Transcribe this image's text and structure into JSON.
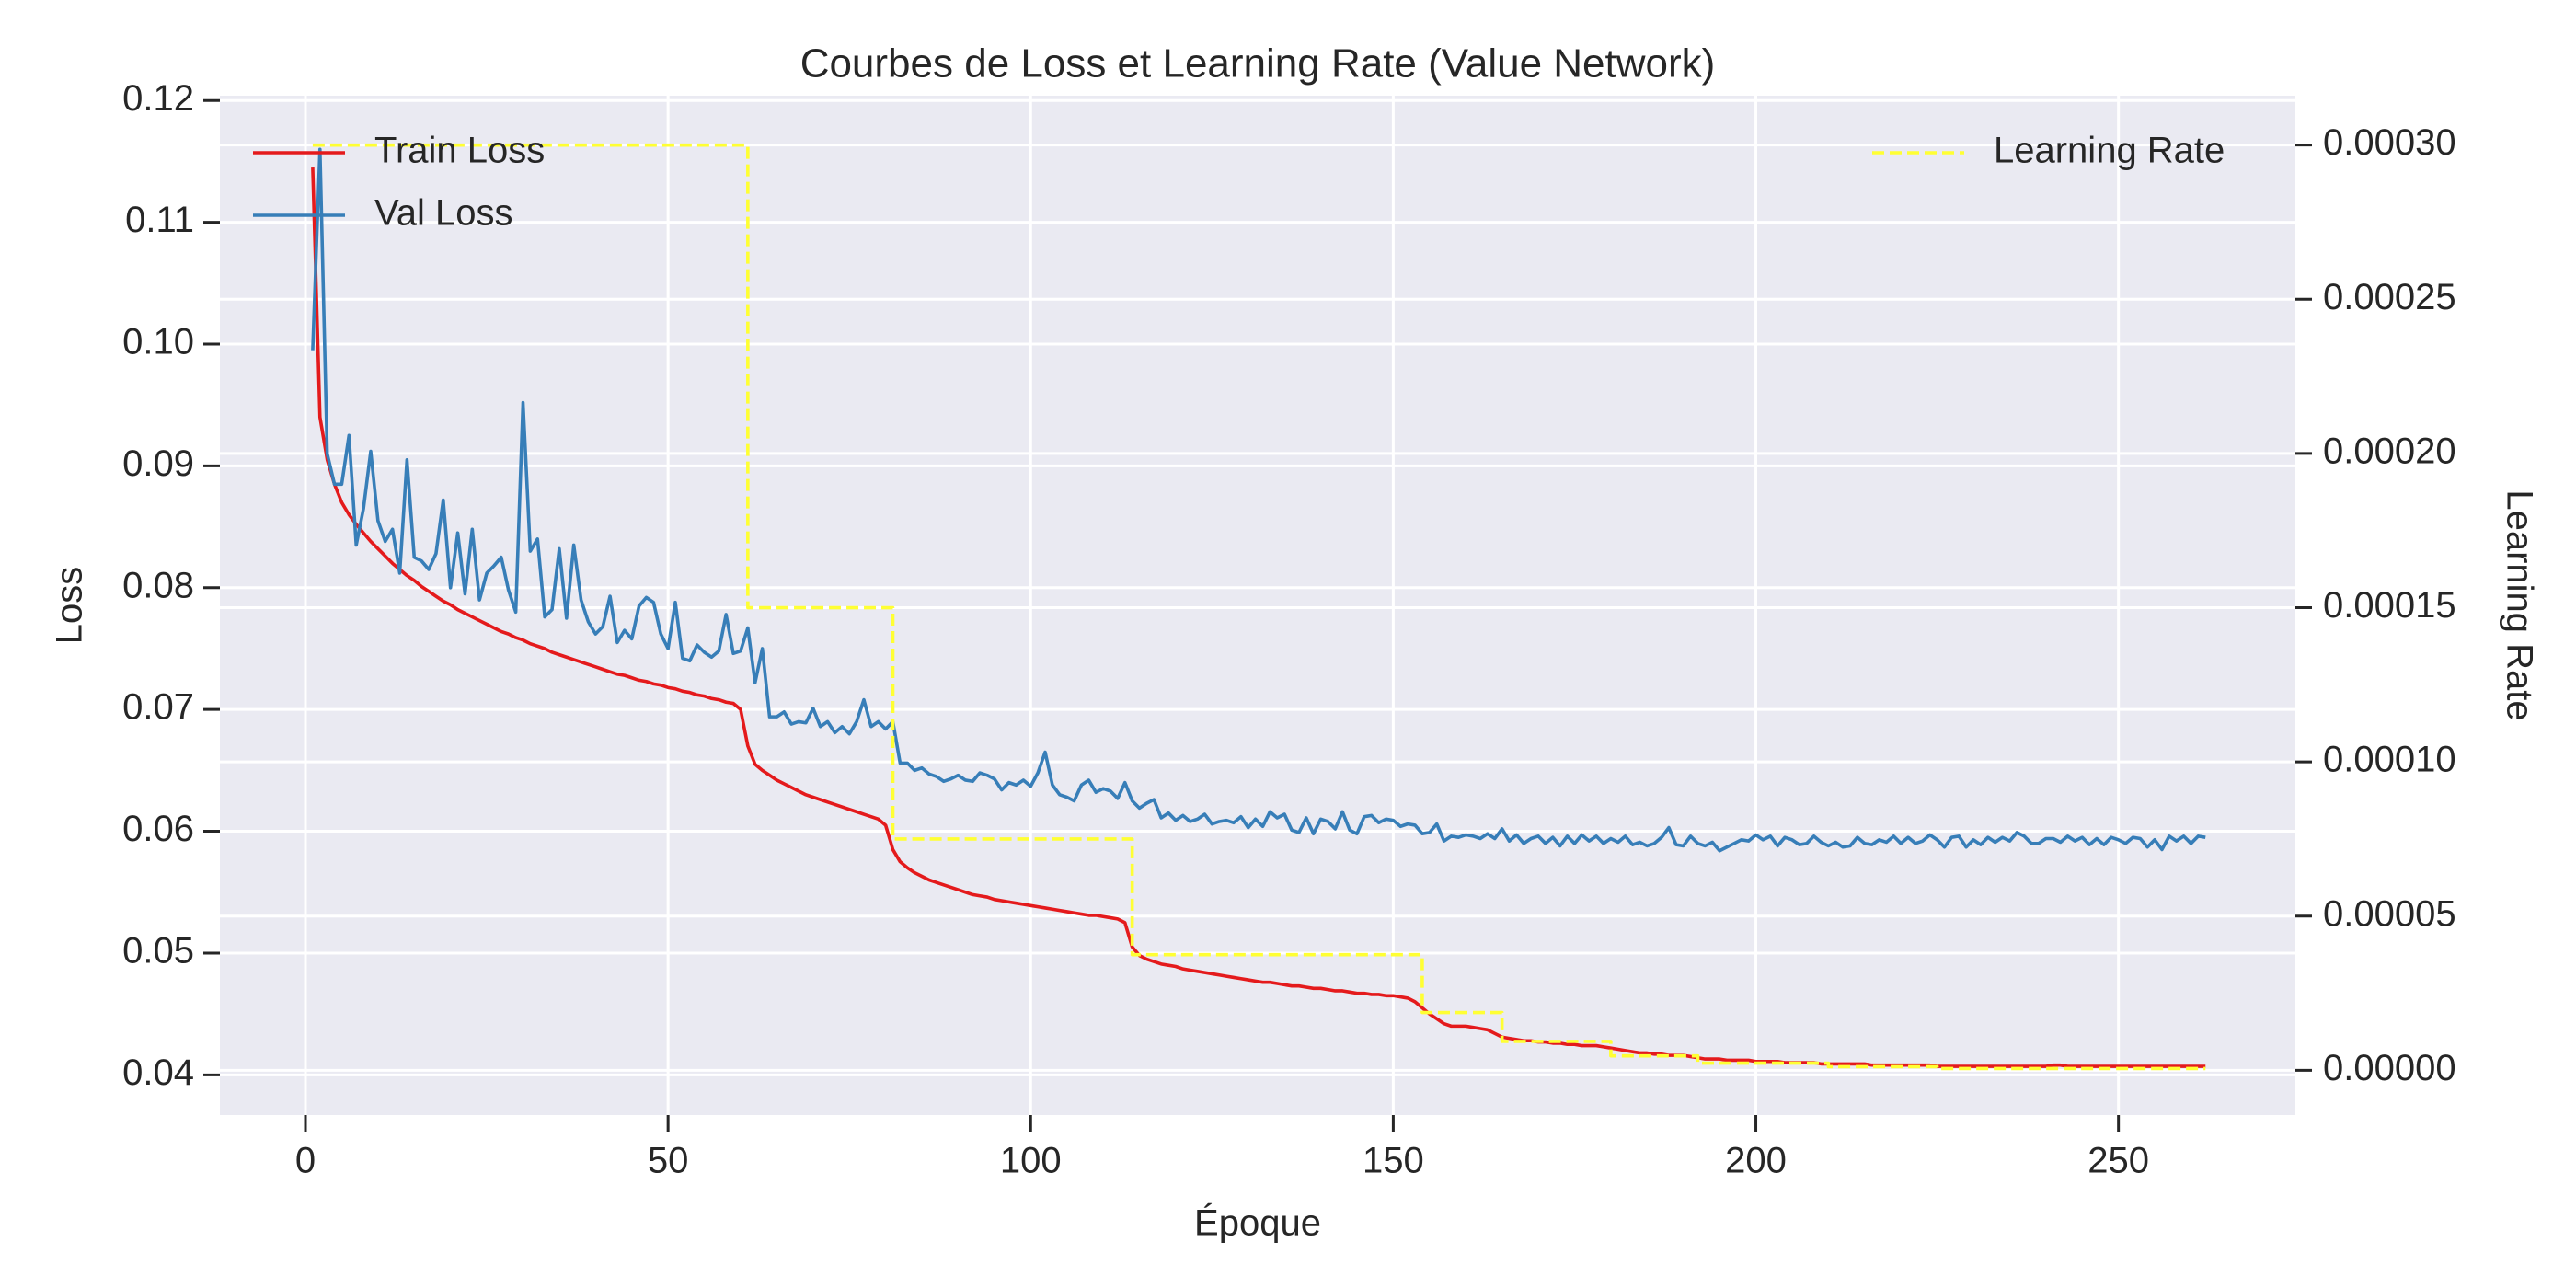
{
  "chart_data": {
    "type": "line",
    "title": "Courbes de Loss et Learning Rate (Value Network)",
    "xlabel": "Époque",
    "ylabel": "Loss",
    "y2label": "Learning Rate",
    "xlim": [
      -11.8,
      274.4
    ],
    "ylim": [
      0.0367,
      0.1204
    ],
    "y2lim": [
      -1.45e-05,
      0.000316
    ],
    "xticks": [
      0,
      50,
      100,
      150,
      200,
      250
    ],
    "yticks": [
      0.04,
      0.05,
      0.06,
      0.07,
      0.08,
      0.09,
      {
        "value": 0.1,
        "label": "0.10"
      },
      0.11,
      0.12
    ],
    "y2ticks": [
      {
        "value": 0,
        "label": "0.00000"
      },
      {
        "value": 5e-05,
        "label": "0.00005"
      },
      {
        "value": 0.0001,
        "label": "0.00010"
      },
      {
        "value": 0.00015,
        "label": "0.00015"
      },
      {
        "value": 0.0002,
        "label": "0.00020"
      },
      {
        "value": 0.00025,
        "label": "0.00025"
      },
      {
        "value": 0.0003,
        "label": "0.00030"
      }
    ],
    "grid": true,
    "legend": "upper left",
    "y2_legend": "upper right",
    "x": [
      1,
      2,
      3,
      4,
      5,
      6,
      7,
      8,
      9,
      10,
      11,
      12,
      13,
      14,
      15,
      16,
      17,
      18,
      19,
      20,
      21,
      22,
      23,
      24,
      25,
      26,
      27,
      28,
      29,
      30,
      31,
      32,
      33,
      34,
      35,
      36,
      37,
      38,
      39,
      40,
      41,
      42,
      43,
      44,
      45,
      46,
      47,
      48,
      49,
      50,
      51,
      52,
      53,
      54,
      55,
      56,
      57,
      58,
      59,
      60,
      61,
      62,
      63,
      64,
      65,
      66,
      67,
      68,
      69,
      70,
      71,
      72,
      73,
      74,
      75,
      76,
      77,
      78,
      79,
      80,
      81,
      82,
      83,
      84,
      85,
      86,
      87,
      88,
      89,
      90,
      91,
      92,
      93,
      94,
      95,
      96,
      97,
      98,
      99,
      100,
      101,
      102,
      103,
      104,
      105,
      106,
      107,
      108,
      109,
      110,
      111,
      112,
      113,
      114,
      115,
      116,
      117,
      118,
      119,
      120,
      121,
      122,
      123,
      124,
      125,
      126,
      127,
      128,
      129,
      130,
      131,
      132,
      133,
      134,
      135,
      136,
      137,
      138,
      139,
      140,
      141,
      142,
      143,
      144,
      145,
      146,
      147,
      148,
      149,
      150,
      151,
      152,
      153,
      154,
      155,
      156,
      157,
      158,
      159,
      160,
      161,
      162,
      163,
      164,
      165,
      166,
      167,
      168,
      169,
      170,
      171,
      172,
      173,
      174,
      175,
      176,
      177,
      178,
      179,
      180,
      181,
      182,
      183,
      184,
      185,
      186,
      187,
      188,
      189,
      190,
      191,
      192,
      193,
      194,
      195,
      196,
      197,
      198,
      199,
      200,
      201,
      202,
      203,
      204,
      205,
      206,
      207,
      208,
      209,
      210,
      211,
      212,
      213,
      214,
      215,
      216,
      217,
      218,
      219,
      220,
      221,
      222,
      223,
      224,
      225,
      226,
      227,
      228,
      229,
      230,
      231,
      232,
      233,
      234,
      235,
      236,
      237,
      238,
      239,
      240,
      241,
      242,
      243,
      244,
      245,
      246,
      247,
      248,
      249,
      250,
      251,
      252,
      253,
      254,
      255,
      256,
      257,
      258,
      259,
      260,
      261,
      262
    ],
    "series": [
      {
        "name": "Train Loss",
        "color": "#e41a1c",
        "values": [
          0.1145,
          0.094,
          0.0905,
          0.0885,
          0.087,
          0.086,
          0.0852,
          0.0845,
          0.0838,
          0.0832,
          0.0826,
          0.082,
          0.0815,
          0.081,
          0.0806,
          0.0801,
          0.0797,
          0.0793,
          0.0789,
          0.0786,
          0.0782,
          0.0779,
          0.0776,
          0.0773,
          0.077,
          0.0767,
          0.0764,
          0.0762,
          0.0759,
          0.0757,
          0.0754,
          0.0752,
          0.075,
          0.0747,
          0.0745,
          0.0743,
          0.0741,
          0.0739,
          0.0737,
          0.0735,
          0.0733,
          0.0731,
          0.0729,
          0.0728,
          0.0726,
          0.0724,
          0.0723,
          0.0721,
          0.072,
          0.0718,
          0.0717,
          0.0715,
          0.0714,
          0.0712,
          0.0711,
          0.0709,
          0.0708,
          0.0706,
          0.0705,
          0.07,
          0.067,
          0.0655,
          0.065,
          0.0646,
          0.0642,
          0.0639,
          0.0636,
          0.0633,
          0.063,
          0.0628,
          0.0626,
          0.0624,
          0.0622,
          0.062,
          0.0618,
          0.0616,
          0.0614,
          0.0612,
          0.061,
          0.0605,
          0.0585,
          0.0575,
          0.057,
          0.0566,
          0.0563,
          0.056,
          0.0558,
          0.0556,
          0.0554,
          0.0552,
          0.055,
          0.0548,
          0.0547,
          0.0546,
          0.0544,
          0.0543,
          0.0542,
          0.0541,
          0.054,
          0.0539,
          0.0538,
          0.0537,
          0.0536,
          0.0535,
          0.0534,
          0.0533,
          0.0532,
          0.0531,
          0.0531,
          0.053,
          0.0529,
          0.0528,
          0.0525,
          0.0505,
          0.0498,
          0.0495,
          0.0493,
          0.0491,
          0.049,
          0.0489,
          0.0487,
          0.0486,
          0.0485,
          0.0484,
          0.0483,
          0.0482,
          0.0481,
          0.048,
          0.0479,
          0.0478,
          0.0477,
          0.0476,
          0.0476,
          0.0475,
          0.0474,
          0.0473,
          0.0473,
          0.0472,
          0.0471,
          0.0471,
          0.047,
          0.0469,
          0.0469,
          0.0468,
          0.0467,
          0.0467,
          0.0466,
          0.0466,
          0.0465,
          0.0465,
          0.0464,
          0.0463,
          0.046,
          0.0455,
          0.045,
          0.0446,
          0.0442,
          0.044,
          0.044,
          0.044,
          0.0439,
          0.0438,
          0.0437,
          0.0434,
          0.0431,
          0.043,
          0.0429,
          0.0428,
          0.0428,
          0.0427,
          0.0427,
          0.0426,
          0.0426,
          0.0425,
          0.0425,
          0.0424,
          0.0424,
          0.0424,
          0.0423,
          0.0422,
          0.0421,
          0.042,
          0.0419,
          0.0418,
          0.0418,
          0.0417,
          0.0417,
          0.0416,
          0.0416,
          0.0416,
          0.0415,
          0.0414,
          0.0413,
          0.0413,
          0.0413,
          0.0412,
          0.0412,
          0.0412,
          0.0412,
          0.0411,
          0.0411,
          0.0411,
          0.0411,
          0.041,
          0.041,
          0.041,
          0.041,
          0.041,
          0.0409,
          0.0409,
          0.0409,
          0.0409,
          0.0409,
          0.0409,
          0.0409,
          0.0408,
          0.0408,
          0.0408,
          0.0408,
          0.0408,
          0.0408,
          0.0408,
          0.0408,
          0.0408,
          0.0407,
          0.0407,
          0.0407,
          0.0407,
          0.0407,
          0.0407,
          0.0407,
          0.0407,
          0.0407,
          0.0407,
          0.0407,
          0.0407,
          0.0407,
          0.0407,
          0.0407,
          0.0407,
          0.0408,
          0.0408,
          0.0407,
          0.0407,
          0.0407,
          0.0407,
          0.0407,
          0.0407,
          0.0407,
          0.0407,
          0.0407,
          0.0407,
          0.0407,
          0.0407,
          0.0407,
          0.0407,
          0.0407,
          0.0407,
          0.0407,
          0.0407,
          0.0407,
          0.0407
        ]
      },
      {
        "name": "Val Loss",
        "color": "#377eb8",
        "values": [
          0.0995,
          0.116,
          0.091,
          0.0885,
          0.0885,
          0.0925,
          0.0835,
          0.0865,
          0.0912,
          0.0855,
          0.0838,
          0.0848,
          0.0812,
          0.0905,
          0.0825,
          0.0822,
          0.0815,
          0.0828,
          0.0872,
          0.08,
          0.0845,
          0.0795,
          0.0848,
          0.079,
          0.0812,
          0.0818,
          0.0825,
          0.0798,
          0.078,
          0.0952,
          0.083,
          0.084,
          0.0776,
          0.0782,
          0.0832,
          0.0775,
          0.0835,
          0.079,
          0.0772,
          0.0762,
          0.0768,
          0.0793,
          0.0755,
          0.0765,
          0.0758,
          0.0785,
          0.0792,
          0.0788,
          0.0762,
          0.075,
          0.0788,
          0.0742,
          0.074,
          0.0753,
          0.0747,
          0.0743,
          0.0748,
          0.0778,
          0.0746,
          0.0748,
          0.0767,
          0.0722,
          0.075,
          0.0694,
          0.0694,
          0.0698,
          0.0688,
          0.069,
          0.0689,
          0.0701,
          0.0686,
          0.069,
          0.0681,
          0.0686,
          0.068,
          0.069,
          0.0708,
          0.0686,
          0.069,
          0.0684,
          0.069,
          0.0656,
          0.0656,
          0.065,
          0.0652,
          0.0647,
          0.0645,
          0.0641,
          0.0643,
          0.0646,
          0.0642,
          0.0641,
          0.0648,
          0.0646,
          0.0643,
          0.0634,
          0.064,
          0.0638,
          0.0642,
          0.0637,
          0.0648,
          0.0665,
          0.0638,
          0.063,
          0.0628,
          0.0625,
          0.0638,
          0.0642,
          0.0632,
          0.0635,
          0.0633,
          0.0627,
          0.064,
          0.0625,
          0.0619,
          0.0623,
          0.0626,
          0.0611,
          0.0615,
          0.0609,
          0.0613,
          0.0608,
          0.061,
          0.0614,
          0.0606,
          0.0608,
          0.0609,
          0.0607,
          0.0612,
          0.0603,
          0.061,
          0.0604,
          0.0616,
          0.0611,
          0.0614,
          0.0601,
          0.0599,
          0.0611,
          0.0598,
          0.061,
          0.0608,
          0.0602,
          0.0616,
          0.0601,
          0.0598,
          0.0612,
          0.0613,
          0.0607,
          0.061,
          0.0609,
          0.0604,
          0.0606,
          0.0605,
          0.0598,
          0.0599,
          0.0606,
          0.0592,
          0.0596,
          0.0595,
          0.0597,
          0.0596,
          0.0594,
          0.0598,
          0.0594,
          0.0602,
          0.0592,
          0.0597,
          0.059,
          0.0594,
          0.0596,
          0.059,
          0.0595,
          0.0588,
          0.0596,
          0.059,
          0.0597,
          0.0592,
          0.0596,
          0.059,
          0.0594,
          0.0591,
          0.0596,
          0.0589,
          0.0591,
          0.0588,
          0.059,
          0.0595,
          0.0603,
          0.0589,
          0.0588,
          0.0596,
          0.059,
          0.0588,
          0.0591,
          0.0584,
          0.0587,
          0.059,
          0.0593,
          0.0592,
          0.0597,
          0.0593,
          0.0596,
          0.0588,
          0.0595,
          0.0593,
          0.0589,
          0.059,
          0.0596,
          0.0591,
          0.0588,
          0.0591,
          0.0587,
          0.0588,
          0.0595,
          0.059,
          0.0589,
          0.0593,
          0.0591,
          0.0596,
          0.059,
          0.0595,
          0.059,
          0.0592,
          0.0597,
          0.0593,
          0.0587,
          0.0595,
          0.0596,
          0.0587,
          0.0593,
          0.0589,
          0.0595,
          0.0591,
          0.0595,
          0.0592,
          0.0599,
          0.0596,
          0.059,
          0.059,
          0.0594,
          0.0594,
          0.0591,
          0.0596,
          0.0592,
          0.0595,
          0.0589,
          0.0594,
          0.0589,
          0.0595,
          0.0593,
          0.059,
          0.0595,
          0.0594,
          0.0587,
          0.0593,
          0.0585,
          0.0596,
          0.0592,
          0.0596,
          0.059,
          0.0596,
          0.0595
        ]
      },
      {
        "name": "Learning Rate",
        "color": "#ffff33",
        "axis": "y2",
        "dashed": true,
        "step": "post",
        "x": [
          1,
          61,
          81,
          114,
          154,
          165,
          180,
          192,
          210,
          225,
          262
        ],
        "values": [
          0.0003,
          0.00015,
          7.5e-05,
          3.75e-05,
          1.875e-05,
          9.375e-06,
          4.6875e-06,
          2.34e-06,
          1.17e-06,
          5.9e-07,
          5.9e-07
        ]
      }
    ]
  }
}
